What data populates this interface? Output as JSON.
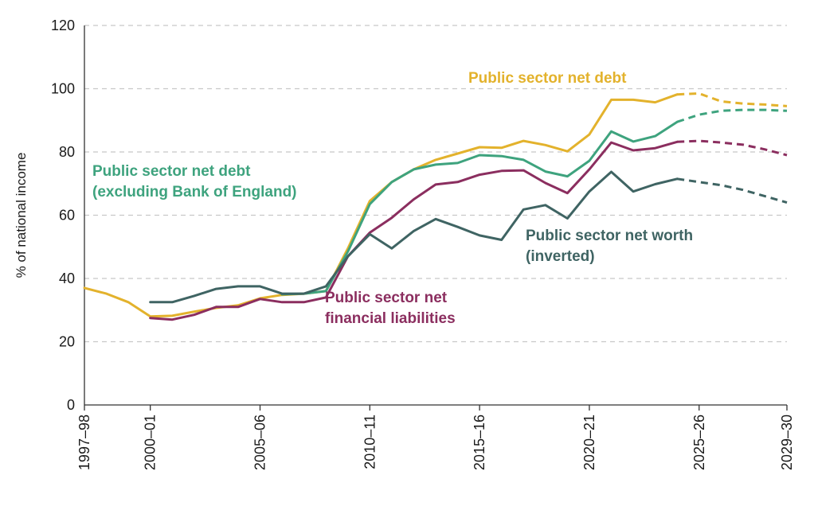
{
  "chart_data": {
    "type": "line",
    "ylabel": "% of national income",
    "ylim": [
      0,
      120
    ],
    "yticks": [
      "0",
      "20",
      "40",
      "60",
      "80",
      "100",
      "120"
    ],
    "xlim": [
      1997,
      2029
    ],
    "xticks": [
      {
        "x": 1997,
        "label": "1997–98"
      },
      {
        "x": 2000,
        "label": "2000–01"
      },
      {
        "x": 2005,
        "label": "2005–06"
      },
      {
        "x": 2010,
        "label": "2010–11"
      },
      {
        "x": 2015,
        "label": "2015–16"
      },
      {
        "x": 2020,
        "label": "2020–21"
      },
      {
        "x": 2025,
        "label": "2025–26"
      },
      {
        "x": 2029,
        "label": "2029–30"
      }
    ],
    "grid": "horizontal dashed",
    "forecast_from": 2024,
    "series": [
      {
        "name": "Public sector net debt",
        "color": "#E3B22C",
        "label": [
          "Public sector net debt"
        ],
        "x": [
          1997,
          1998,
          1999,
          2000,
          2001,
          2002,
          2003,
          2004,
          2005,
          2006,
          2007,
          2008,
          2009,
          2010,
          2011,
          2012,
          2013,
          2014,
          2015,
          2016,
          2017,
          2018,
          2019,
          2020,
          2021,
          2022,
          2023,
          2024,
          2025,
          2026,
          2027,
          2028,
          2029
        ],
        "values": [
          37,
          35.2,
          32.5,
          28,
          28.2,
          29.5,
          30.7,
          31.5,
          33.7,
          34.8,
          35.2,
          36,
          49.5,
          64.5,
          70.5,
          74.5,
          77.5,
          79.5,
          81.5,
          81.3,
          83.5,
          82.2,
          80.2,
          85.5,
          96.5,
          96.5,
          95.7,
          98.2,
          98.5,
          96,
          95.3,
          95,
          94.5
        ]
      },
      {
        "name": "Public sector net debt (excluding Bank of England)",
        "color": "#3EA37E",
        "label": [
          "Public sector net debt",
          "(excluding Bank of England)"
        ],
        "x": [
          2006,
          2007,
          2008,
          2009,
          2010,
          2011,
          2012,
          2013,
          2014,
          2015,
          2016,
          2017,
          2018,
          2019,
          2020,
          2021,
          2022,
          2023,
          2024,
          2025,
          2026,
          2027,
          2028,
          2029
        ],
        "values": [
          35,
          35.2,
          36,
          48.5,
          63.5,
          70.5,
          74.5,
          76,
          76.5,
          79,
          78.7,
          77.5,
          73.8,
          72.3,
          77.2,
          86.5,
          83.3,
          85,
          89.5,
          91.8,
          93,
          93.3,
          93.3,
          93
        ]
      },
      {
        "name": "Public sector net financial liabilities",
        "color": "#8B2E5F",
        "label": [
          "Public sector net",
          "financial liabilities"
        ],
        "x": [
          2000,
          2001,
          2002,
          2003,
          2004,
          2005,
          2006,
          2007,
          2008,
          2009,
          2010,
          2011,
          2012,
          2013,
          2014,
          2015,
          2016,
          2017,
          2018,
          2019,
          2020,
          2021,
          2022,
          2023,
          2024,
          2025,
          2026,
          2027,
          2028,
          2029
        ],
        "values": [
          27.5,
          27,
          28.5,
          31,
          31,
          33.5,
          32.5,
          32.5,
          34,
          47,
          54.5,
          59.2,
          65,
          69.7,
          70.5,
          72.8,
          74,
          74.2,
          70.2,
          67,
          74.5,
          83,
          80.5,
          81.2,
          83.2,
          83.5,
          83,
          82.3,
          80.8,
          79
        ]
      },
      {
        "name": "Public sector net worth (inverted)",
        "color": "#3F6463",
        "label": [
          "Public sector net worth",
          "(inverted)"
        ],
        "x": [
          2000,
          2001,
          2002,
          2003,
          2004,
          2005,
          2006,
          2007,
          2008,
          2009,
          2010,
          2011,
          2012,
          2013,
          2014,
          2015,
          2016,
          2017,
          2018,
          2019,
          2020,
          2021,
          2022,
          2023,
          2024,
          2025,
          2026,
          2027,
          2028,
          2029
        ],
        "values": [
          32.5,
          32.5,
          34.5,
          36.7,
          37.5,
          37.5,
          35.2,
          35.2,
          37.5,
          47,
          54,
          49.5,
          55,
          58.8,
          56.3,
          53.6,
          52.2,
          61.8,
          63.2,
          59,
          67.5,
          73.7,
          67.5,
          69.8,
          71.5,
          70.5,
          69.5,
          68,
          66,
          64
        ]
      }
    ]
  }
}
